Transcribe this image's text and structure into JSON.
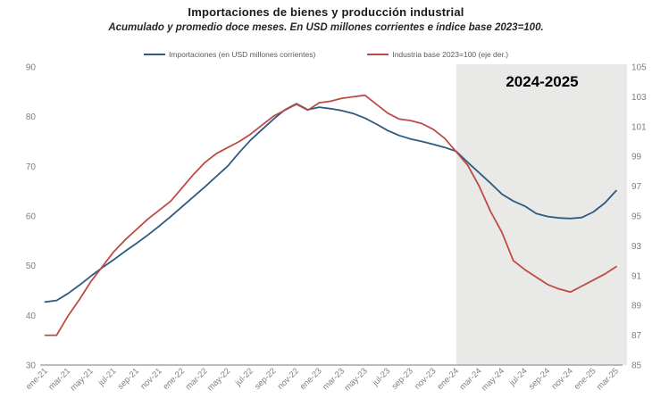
{
  "chart": {
    "title": "Importaciones de bienes y producción industrial",
    "subtitle": "Acumulado y promedio doce meses. En USD millones corrientes e índice base 2023=100.",
    "annotation": {
      "label": "2024-2025",
      "band_start_month": "ene-24"
    },
    "legend": [
      {
        "label": "Importaciones (en USD millones corrientes)",
        "color": "#2e5a80"
      },
      {
        "label": "Industria base 2023=100 (eje der.)",
        "color": "#bd4b45"
      }
    ],
    "colors": {
      "band": "#e9e9e8",
      "axis_line": "#a6a6a6",
      "tick_text": "#7f7f7f"
    }
  },
  "chart_data": {
    "type": "line",
    "title": "Importaciones de bienes y producción industrial",
    "subtitle": "Acumulado y promedio doce meses. En USD millones corrientes e índice base 2023=100.",
    "x": [
      "ene-21",
      "feb-21",
      "mar-21",
      "abr-21",
      "may-21",
      "jun-21",
      "jul-21",
      "ago-21",
      "sep-21",
      "oct-21",
      "nov-21",
      "dic-21",
      "ene-22",
      "feb-22",
      "mar-22",
      "abr-22",
      "may-22",
      "jun-22",
      "jul-22",
      "ago-22",
      "sep-22",
      "oct-22",
      "nov-22",
      "dic-22",
      "ene-23",
      "feb-23",
      "mar-23",
      "abr-23",
      "may-23",
      "jun-23",
      "jul-23",
      "ago-23",
      "sep-23",
      "oct-23",
      "nov-23",
      "dic-23",
      "ene-24",
      "feb-24",
      "mar-24",
      "abr-24",
      "may-24",
      "jun-24",
      "jul-24",
      "ago-24",
      "sep-24",
      "oct-24",
      "nov-24",
      "dic-24",
      "ene-25",
      "feb-25",
      "mar-25"
    ],
    "x_tick_labels": [
      "ene-21",
      "mar-21",
      "may-21",
      "jul-21",
      "sep-21",
      "nov-21",
      "ene-22",
      "mar-22",
      "may-22",
      "jul-22",
      "sep-22",
      "nov-22",
      "ene-23",
      "mar-23",
      "may-23",
      "jul-23",
      "sep-23",
      "nov-23",
      "ene-24",
      "mar-24",
      "may-24",
      "jul-24",
      "sep-24",
      "nov-24",
      "ene-25",
      "mar-25"
    ],
    "series": [
      {
        "name": "Importaciones (en USD millones corrientes)",
        "axis": "left",
        "color": "#2e5a80",
        "values": [
          42.7,
          43.0,
          44.4,
          46.1,
          47.9,
          49.6,
          51.2,
          52.9,
          54.5,
          56.2,
          58.0,
          59.9,
          61.9,
          63.9,
          65.9,
          68.0,
          70.1,
          72.8,
          75.3,
          77.4,
          79.5,
          81.4,
          82.6,
          81.4,
          81.9,
          81.6,
          81.2,
          80.6,
          79.7,
          78.5,
          77.2,
          76.2,
          75.5,
          75.0,
          74.4,
          73.8,
          73.0,
          70.8,
          68.7,
          66.6,
          64.4,
          63.0,
          62.0,
          60.5,
          59.9,
          59.6,
          59.5,
          59.7,
          60.8,
          62.6,
          65.1
        ]
      },
      {
        "name": "Industria base 2023=100 (eje der.)",
        "axis": "right",
        "color": "#bd4b45",
        "values": [
          87.0,
          87.0,
          88.3,
          89.4,
          90.6,
          91.6,
          92.6,
          93.4,
          94.1,
          94.8,
          95.4,
          96.0,
          96.9,
          97.8,
          98.6,
          99.2,
          99.6,
          100.0,
          100.5,
          101.1,
          101.7,
          102.1,
          102.5,
          102.1,
          102.6,
          102.7,
          102.9,
          103.0,
          103.1,
          102.5,
          101.9,
          101.5,
          101.4,
          101.2,
          100.8,
          100.2,
          99.3,
          98.4,
          97.0,
          95.3,
          93.9,
          92.0,
          91.4,
          90.9,
          90.4,
          90.1,
          89.9,
          90.3,
          90.7,
          91.1,
          91.6
        ]
      }
    ],
    "y_left": {
      "ticks": [
        90,
        80,
        70,
        60,
        50,
        40,
        30
      ],
      "min": 30,
      "max": 90
    },
    "y_right": {
      "ticks": [
        105,
        103,
        101,
        99,
        97,
        95,
        93,
        91,
        89,
        87,
        85
      ],
      "min": 85,
      "max": 105
    },
    "highlight_band": {
      "label": "2024-2025",
      "start_x": "ene-24",
      "end_x": "mar-25"
    },
    "grid": false,
    "legend_position": "top"
  }
}
